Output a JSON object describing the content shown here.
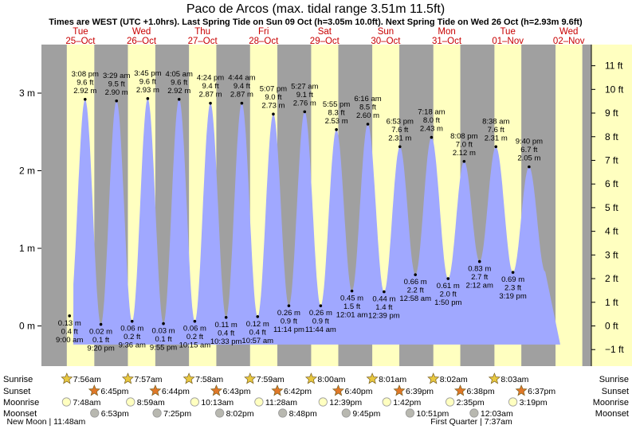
{
  "chart_data": {
    "type": "area",
    "title": "Paco de Arcos (max. tidal range 3.51m 11.5ft)",
    "subtitle": "Times are WEST (UTC +1.0hrs). Last Spring Tide on Sun 09 Oct (h=3.05m 10.0ft). Next Spring Tide on Wed 26 Oct (h=2.93m 9.6ft)",
    "days": [
      {
        "dow": "Tue",
        "date": "25–Oct"
      },
      {
        "dow": "Wed",
        "date": "26–Oct"
      },
      {
        "dow": "Thu",
        "date": "27–Oct"
      },
      {
        "dow": "Fri",
        "date": "28–Oct"
      },
      {
        "dow": "Sat",
        "date": "29–Oct"
      },
      {
        "dow": "Sun",
        "date": "30–Oct"
      },
      {
        "dow": "Mon",
        "date": "31–Oct"
      },
      {
        "dow": "Tue",
        "date": "01–Nov"
      },
      {
        "dow": "Wed",
        "date": "02–Nov"
      }
    ],
    "left_axis": {
      "unit": "m",
      "ticks": [
        {
          "v": 0,
          "label": "0 m"
        },
        {
          "v": 1,
          "label": "1 m"
        },
        {
          "v": 2,
          "label": "2 m"
        },
        {
          "v": 3,
          "label": "3 m"
        }
      ]
    },
    "right_axis": {
      "unit": "ft",
      "ticks": [
        {
          "v": -1,
          "label": "−1 ft"
        },
        {
          "v": 0,
          "label": "0 ft"
        },
        {
          "v": 1,
          "label": "1 ft"
        },
        {
          "v": 2,
          "label": "2 ft"
        },
        {
          "v": 3,
          "label": "3 ft"
        },
        {
          "v": 4,
          "label": "4 ft"
        },
        {
          "v": 5,
          "label": "5 ft"
        },
        {
          "v": 6,
          "label": "6 ft"
        },
        {
          "v": 7,
          "label": "7 ft"
        },
        {
          "v": 8,
          "label": "8 ft"
        },
        {
          "v": 9,
          "label": "9 ft"
        },
        {
          "v": 10,
          "label": "10 ft"
        },
        {
          "v": 11,
          "label": "11 ft"
        }
      ]
    },
    "ylim_m": [
      -0.24,
      3.6
    ],
    "tides": [
      {
        "type": "low",
        "day": 0,
        "hour": 9.0,
        "m": 0.13,
        "lines": [
          "0.13 m",
          "0.4 ft",
          "9:00 am"
        ]
      },
      {
        "type": "high",
        "day": 0,
        "hour": 15.13,
        "m": 2.92,
        "lines": [
          "3:08 pm",
          "9.6 ft",
          "2.92 m"
        ]
      },
      {
        "type": "low",
        "day": 0,
        "hour": 21.33,
        "m": 0.02,
        "lines": [
          "0.02 m",
          "0.1 ft",
          "9:20 pm"
        ]
      },
      {
        "type": "high",
        "day": 1,
        "hour": 3.48,
        "m": 2.9,
        "lines": [
          "3:29 am",
          "9.5 ft",
          "2.90 m"
        ]
      },
      {
        "type": "low",
        "day": 1,
        "hour": 9.6,
        "m": 0.06,
        "lines": [
          "0.06 m",
          "0.2 ft",
          "9:36 am"
        ]
      },
      {
        "type": "high",
        "day": 1,
        "hour": 15.75,
        "m": 2.93,
        "lines": [
          "3:45 pm",
          "9.6 ft",
          "2.93 m"
        ]
      },
      {
        "type": "low",
        "day": 1,
        "hour": 21.92,
        "m": 0.03,
        "lines": [
          "0.03 m",
          "0.1 ft",
          "9:55 pm"
        ]
      },
      {
        "type": "high",
        "day": 2,
        "hour": 4.08,
        "m": 2.92,
        "lines": [
          "4:05 am",
          "9.6 ft",
          "2.92 m"
        ]
      },
      {
        "type": "low",
        "day": 2,
        "hour": 10.25,
        "m": 0.06,
        "lines": [
          "0.06 m",
          "0.2 ft",
          "10:15 am"
        ]
      },
      {
        "type": "high",
        "day": 2,
        "hour": 16.4,
        "m": 2.87,
        "lines": [
          "4:24 pm",
          "9.4 ft",
          "2.87 m"
        ]
      },
      {
        "type": "low",
        "day": 2,
        "hour": 22.55,
        "m": 0.11,
        "lines": [
          "0.11 m",
          "0.4 ft",
          "10:33 pm"
        ]
      },
      {
        "type": "high",
        "day": 3,
        "hour": 4.73,
        "m": 2.87,
        "lines": [
          "4:44 am",
          "9.4 ft",
          "2.87 m"
        ]
      },
      {
        "type": "low",
        "day": 3,
        "hour": 10.95,
        "m": 0.12,
        "lines": [
          "0.12 m",
          "0.4 ft",
          "10:57 am"
        ]
      },
      {
        "type": "high",
        "day": 3,
        "hour": 17.12,
        "m": 2.73,
        "lines": [
          "5:07 pm",
          "9.0 ft",
          "2.73 m"
        ]
      },
      {
        "type": "low",
        "day": 3,
        "hour": 23.23,
        "m": 0.26,
        "lines": [
          "0.26 m",
          "0.9 ft",
          "11:14 pm"
        ]
      },
      {
        "type": "high",
        "day": 4,
        "hour": 5.45,
        "m": 2.76,
        "lines": [
          "5:27 am",
          "9.1 ft",
          "2.76 m"
        ]
      },
      {
        "type": "low",
        "day": 4,
        "hour": 11.73,
        "m": 0.26,
        "lines": [
          "0.26 m",
          "0.9 ft",
          "11:44 am"
        ]
      },
      {
        "type": "high",
        "day": 4,
        "hour": 17.92,
        "m": 2.53,
        "lines": [
          "5:55 pm",
          "8.3 ft",
          "2.53 m"
        ]
      },
      {
        "type": "low",
        "day": 5,
        "hour": 0.02,
        "m": 0.45,
        "lines": [
          "0.45 m",
          "1.5 ft",
          "12:01 am"
        ]
      },
      {
        "type": "high",
        "day": 5,
        "hour": 6.27,
        "m": 2.6,
        "lines": [
          "6:16 am",
          "8.5 ft",
          "2.60 m"
        ]
      },
      {
        "type": "low",
        "day": 5,
        "hour": 12.65,
        "m": 0.44,
        "lines": [
          "0.44 m",
          "1.4 ft",
          "12:39 pm"
        ]
      },
      {
        "type": "high",
        "day": 5,
        "hour": 18.88,
        "m": 2.31,
        "lines": [
          "6:53 pm",
          "7.6 ft",
          "2.31 m"
        ]
      },
      {
        "type": "low",
        "day": 6,
        "hour": 0.97,
        "m": 0.66,
        "lines": [
          "0.66 m",
          "2.2 ft",
          "12:58 am"
        ]
      },
      {
        "type": "high",
        "day": 6,
        "hour": 7.3,
        "m": 2.43,
        "lines": [
          "7:18 am",
          "8.0 ft",
          "2.43 m"
        ]
      },
      {
        "type": "low",
        "day": 6,
        "hour": 13.83,
        "m": 0.61,
        "lines": [
          "0.61 m",
          "2.0 ft",
          "1:50 pm"
        ]
      },
      {
        "type": "high",
        "day": 6,
        "hour": 20.13,
        "m": 2.12,
        "lines": [
          "8:08 pm",
          "7.0 ft",
          "2.12 m"
        ]
      },
      {
        "type": "low",
        "day": 7,
        "hour": 2.2,
        "m": 0.83,
        "lines": [
          "0.83 m",
          "2.7 ft",
          "2:12 am"
        ]
      },
      {
        "type": "high",
        "day": 7,
        "hour": 8.63,
        "m": 2.31,
        "lines": [
          "8:38 am",
          "7.6 ft",
          "2.31 m"
        ]
      },
      {
        "type": "low",
        "day": 7,
        "hour": 15.32,
        "m": 0.69,
        "lines": [
          "0.69 m",
          "2.3 ft",
          "3:19 pm"
        ]
      },
      {
        "type": "high",
        "day": 7,
        "hour": 21.67,
        "m": 2.05,
        "lines": [
          "9:40 pm",
          "6.7 ft",
          "2.05 m"
        ]
      }
    ],
    "daylight": [
      {
        "day": 0,
        "sunrise": 7.93,
        "sunset": 18.75
      },
      {
        "day": 1,
        "sunrise": 7.95,
        "sunset": 18.73
      },
      {
        "day": 2,
        "sunrise": 7.97,
        "sunset": 18.72
      },
      {
        "day": 3,
        "sunrise": 7.98,
        "sunset": 18.7
      },
      {
        "day": 4,
        "sunrise": 8.0,
        "sunset": 18.67
      },
      {
        "day": 5,
        "sunrise": 8.02,
        "sunset": 18.65
      },
      {
        "day": 6,
        "sunrise": 8.03,
        "sunset": 18.63
      },
      {
        "day": 7,
        "sunrise": 8.05,
        "sunset": 18.62
      },
      {
        "day": 8,
        "sunrise": 8.07,
        "sunset": 18.6
      }
    ],
    "astro_labels": {
      "sunrise": "Sunrise",
      "sunset": "Sunset",
      "moonrise": "Moonrise",
      "moonset": "Moonset"
    },
    "sunrise": [
      {
        "day": 0,
        "hour": 7.93,
        "text": "7:56am"
      },
      {
        "day": 1,
        "hour": 7.95,
        "text": "7:57am"
      },
      {
        "day": 2,
        "hour": 7.97,
        "text": "7:58am"
      },
      {
        "day": 3,
        "hour": 7.98,
        "text": "7:59am"
      },
      {
        "day": 4,
        "hour": 8.0,
        "text": "8:00am"
      },
      {
        "day": 5,
        "hour": 8.02,
        "text": "8:01am"
      },
      {
        "day": 6,
        "hour": 8.03,
        "text": "8:02am"
      },
      {
        "day": 7,
        "hour": 8.05,
        "text": "8:03am"
      }
    ],
    "sunset": [
      {
        "day": 0,
        "hour": 18.75,
        "text": "6:45pm"
      },
      {
        "day": 1,
        "hour": 18.73,
        "text": "6:44pm"
      },
      {
        "day": 2,
        "hour": 18.72,
        "text": "6:43pm"
      },
      {
        "day": 3,
        "hour": 18.7,
        "text": "6:42pm"
      },
      {
        "day": 4,
        "hour": 18.67,
        "text": "6:40pm"
      },
      {
        "day": 5,
        "hour": 18.65,
        "text": "6:39pm"
      },
      {
        "day": 6,
        "hour": 18.63,
        "text": "6:38pm"
      },
      {
        "day": 7,
        "hour": 18.62,
        "text": "6:37pm"
      }
    ],
    "moonrise": [
      {
        "day": 0,
        "hour": 7.8,
        "text": "7:48am"
      },
      {
        "day": 1,
        "hour": 8.98,
        "text": "8:59am"
      },
      {
        "day": 2,
        "hour": 10.22,
        "text": "10:13am"
      },
      {
        "day": 3,
        "hour": 11.47,
        "text": "11:28am"
      },
      {
        "day": 4,
        "hour": 12.65,
        "text": "12:39pm"
      },
      {
        "day": 5,
        "hour": 13.7,
        "text": "1:42pm"
      },
      {
        "day": 6,
        "hour": 14.58,
        "text": "2:35pm"
      },
      {
        "day": 7,
        "hour": 15.32,
        "text": "3:19pm"
      }
    ],
    "moonset": [
      {
        "day": 0,
        "hour": 18.88,
        "text": "6:53pm"
      },
      {
        "day": 1,
        "hour": 19.42,
        "text": "7:25pm"
      },
      {
        "day": 2,
        "hour": 20.03,
        "text": "8:02pm"
      },
      {
        "day": 3,
        "hour": 20.8,
        "text": "8:48pm"
      },
      {
        "day": 4,
        "hour": 21.75,
        "text": "9:45pm"
      },
      {
        "day": 5,
        "hour": 22.85,
        "text": "10:51pm"
      },
      {
        "day": 7,
        "hour": 0.05,
        "text": "12:03am"
      }
    ],
    "moon_phases": [
      {
        "day": -1,
        "hour": 23.8,
        "text": "New Moon | 11:48am"
      },
      {
        "day": 6,
        "hour": 23.0,
        "text": "First Quarter | 7:37am"
      }
    ],
    "colors": {
      "night": "#a0a0a0",
      "day": "#ffffc0",
      "water": "#a0a8ff",
      "sunrise": "#e8c840",
      "sunset": "#e07828",
      "moonrise": "#ffffc0",
      "moonset": "#b8b8b0"
    }
  }
}
